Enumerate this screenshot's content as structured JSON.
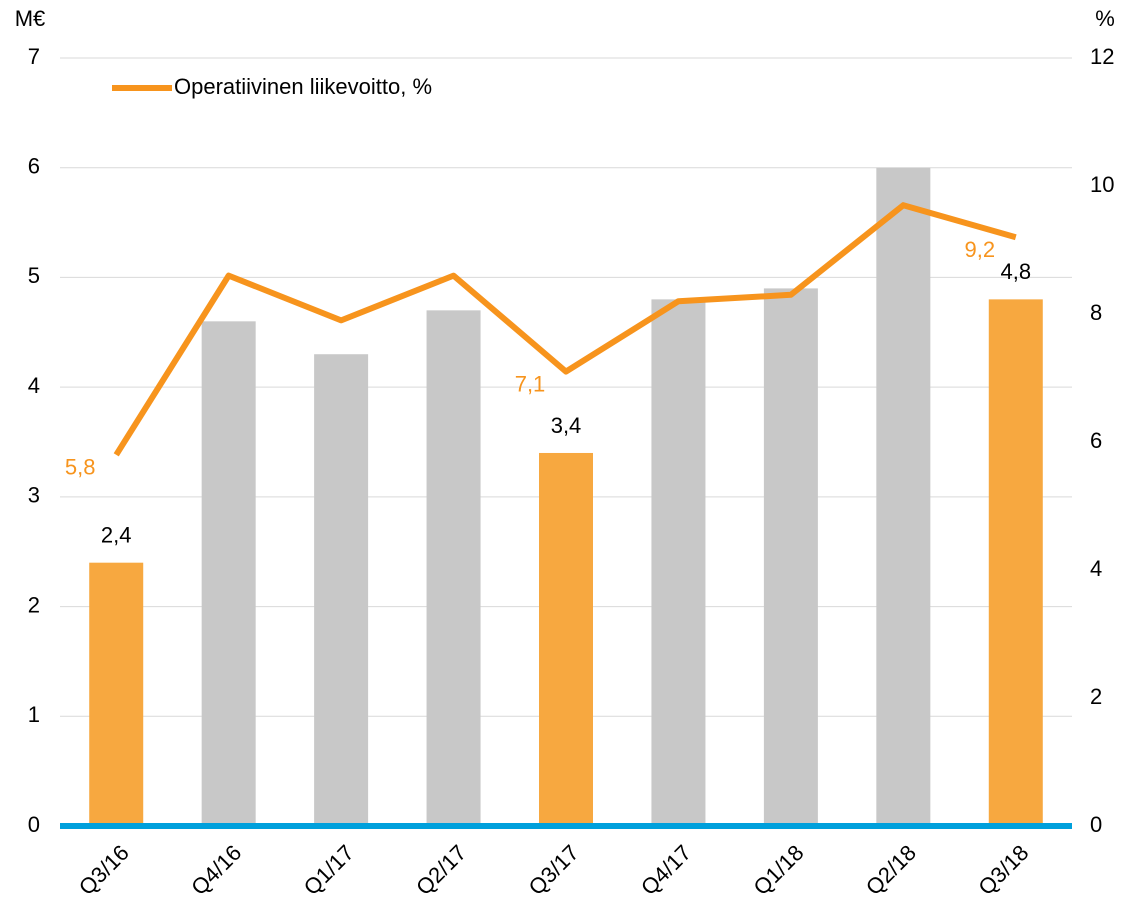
{
  "chart_data": {
    "type": "bar",
    "left_axis_label": "M€",
    "right_axis_label": "%",
    "categories": [
      "Q3/16",
      "Q4/16",
      "Q1/17",
      "Q2/17",
      "Q3/17",
      "Q4/17",
      "Q1/18",
      "Q2/18",
      "Q3/18"
    ],
    "series": [
      {
        "type": "bar",
        "colors": [
          "#f7a840",
          "#c8c8c8",
          "#c8c8c8",
          "#c8c8c8",
          "#f7a840",
          "#c8c8c8",
          "#c8c8c8",
          "#c8c8c8",
          "#f7a840"
        ],
        "values": [
          2.4,
          4.6,
          4.3,
          4.7,
          3.4,
          4.8,
          4.9,
          6.0,
          4.8
        ],
        "value_labels": [
          "2,4",
          null,
          null,
          null,
          "3,4",
          null,
          null,
          null,
          "4,8"
        ]
      },
      {
        "type": "line",
        "name": "Operatiivinen liikevoitto, %",
        "color": "#f7941d",
        "axis": "y2",
        "values": [
          5.8,
          8.6,
          7.9,
          8.6,
          7.1,
          8.2,
          8.3,
          9.7,
          9.2
        ],
        "value_labels": [
          "5,8",
          null,
          null,
          null,
          "7,1",
          null,
          null,
          null,
          "9,2"
        ]
      }
    ],
    "ylim": [
      0,
      7
    ],
    "yticks": [
      0,
      1,
      2,
      3,
      4,
      5,
      6,
      7
    ],
    "y2lim": [
      0,
      12
    ],
    "y2ticks": [
      0,
      2,
      4,
      6,
      8,
      10,
      12
    ],
    "grid": true,
    "grid_color": "#d9d9d9",
    "zero_line_color": "#00a0dc",
    "legend": "top-left"
  }
}
